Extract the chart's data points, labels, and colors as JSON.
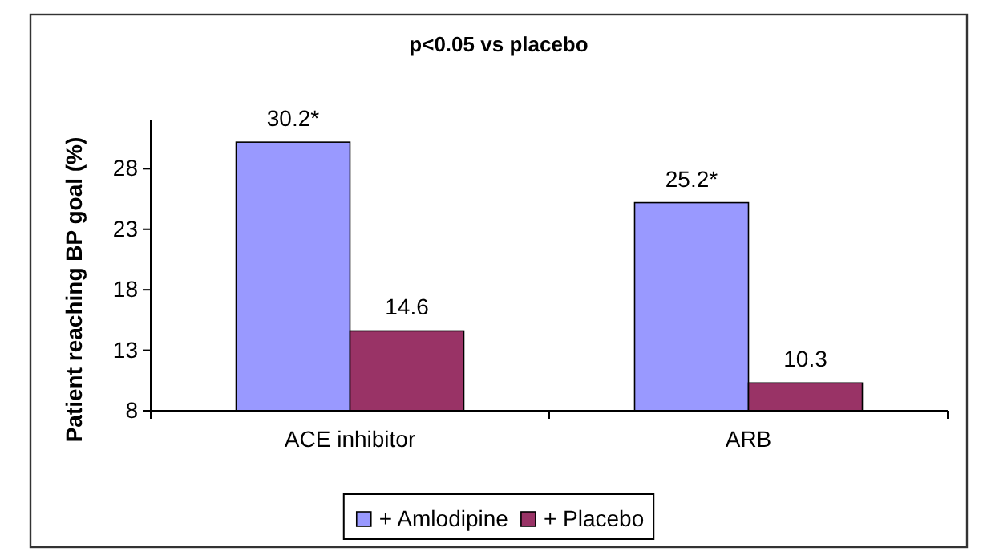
{
  "chart_data": {
    "type": "bar",
    "title": "p<0.05 vs placebo",
    "ylabel": "Patient reaching BP goal (%)",
    "categories": [
      "ACE inhibitor",
      "ARB"
    ],
    "series": [
      {
        "name": "+ Amlodipine",
        "color": "#9999ff",
        "values": [
          30.2,
          25.2
        ],
        "value_labels": [
          "30.2*",
          "25.2*"
        ]
      },
      {
        "name": "+ Placebo",
        "color": "#993366",
        "values": [
          14.6,
          10.3
        ],
        "value_labels": [
          "14.6",
          "10.3"
        ]
      }
    ],
    "ylim": [
      8,
      32
    ],
    "yticks": [
      8,
      13,
      18,
      23,
      28
    ],
    "grid": false,
    "legend": "bottom"
  }
}
